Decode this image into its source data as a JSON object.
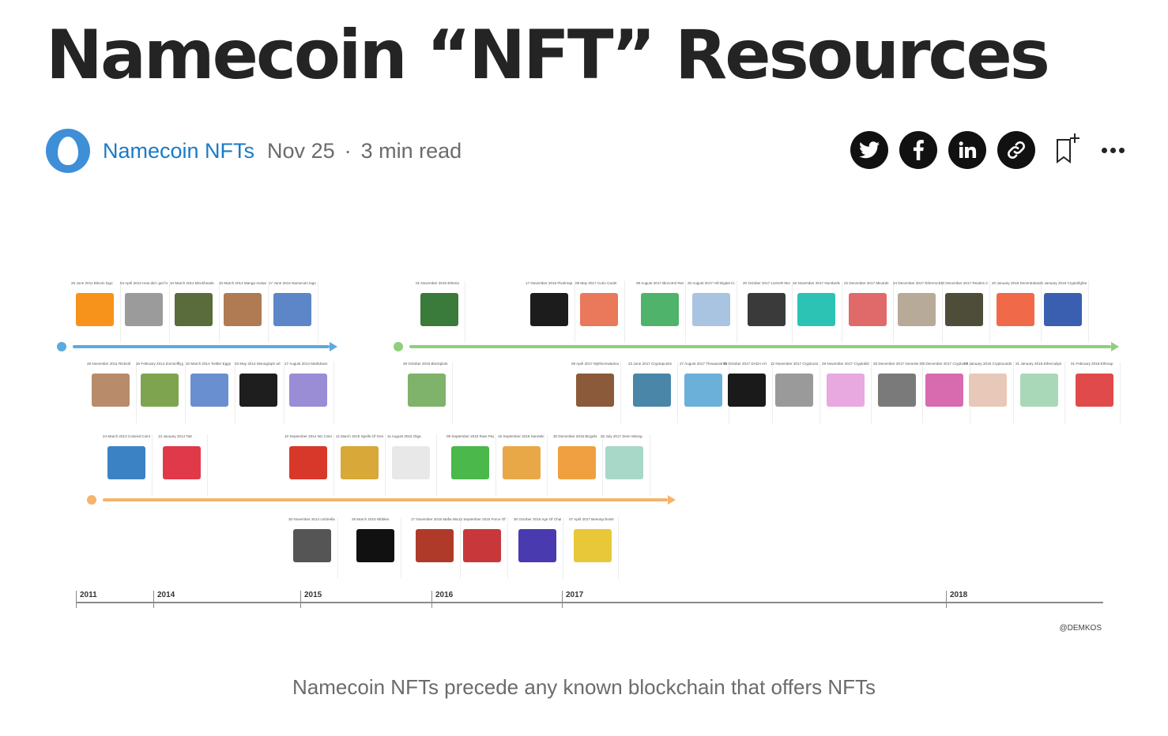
{
  "article": {
    "title": "Namecoin “NFT” Resources",
    "author": "Namecoin NFTs",
    "date": "Nov 25",
    "read_time": "3 min read",
    "caption": "Namecoin NFTs precede any known blockchain that offers NFTs"
  },
  "share": {
    "icons": [
      "twitter-icon",
      "facebook-icon",
      "linkedin-icon",
      "link-icon",
      "bookmark-add-icon",
      "more-icon"
    ],
    "button_color": "#111111"
  },
  "colors": {
    "accent": "#1a7bc6",
    "namecoin_line": "#5da9df",
    "ethereum_line": "#8fcf7c",
    "bitcoin_line": "#f4b46b"
  },
  "timeline": {
    "years": [
      "2011",
      "2014",
      "2015",
      "2016",
      "2017",
      "2018"
    ],
    "credit": "@DEMKOS",
    "events": [
      {
        "date": "25 June 2011",
        "label": "Bitcoin logo",
        "color": "#f7931a"
      },
      {
        "date": "04 April 2012",
        "label": "How did I get here cat",
        "color": "#9b9b9b"
      },
      {
        "date": "10 March 2014",
        "label": "Blockheads",
        "color": "#5a6b3c"
      },
      {
        "date": "10 March 2014",
        "label": "Manga Avatars",
        "color": "#b07a52"
      },
      {
        "date": "17 June 2014",
        "label": "Namecoin logo",
        "color": "#5c86c8"
      },
      {
        "date": "28 November 2011",
        "label": "Rickroll",
        "color": "#b88c6a"
      },
      {
        "date": "16 February 2014",
        "label": "Zomsoffly.jpg",
        "color": "#7fa44f"
      },
      {
        "date": "10 March 2014",
        "label": "Twitter Eggs",
        "color": "#6a8fd0"
      },
      {
        "date": "03 May 2014",
        "label": "Monograph art",
        "color": "#1e1e1e"
      },
      {
        "date": "17 August 2014",
        "label": "Markdown",
        "color": "#9b8cd6"
      },
      {
        "date": "01 November 2016",
        "label": "Etheria",
        "color": "#3a7a3a"
      },
      {
        "date": "17 November 2016",
        "label": "Pixelmap",
        "color": "#1c1c1c"
      },
      {
        "date": "06 May 2017",
        "label": "Curio Cards",
        "color": "#e9795a"
      },
      {
        "date": "09 August 2017",
        "label": "Blocntrol Rescue",
        "color": "#4fb36b"
      },
      {
        "date": "20 August 2017",
        "label": "Hill Digital Coins",
        "color": "#a8c4e0"
      },
      {
        "date": "20 October 2017",
        "label": "LUNAR Moon Plots",
        "color": "#3a3a3a"
      },
      {
        "date": "16 November 2017",
        "label": "Numberboard",
        "color": "#2cc3b5"
      },
      {
        "date": "22 December 2017",
        "label": "Micards",
        "color": "#e06a6a"
      },
      {
        "date": "24 December 2017",
        "label": "Etherrocks",
        "color": "#b8aa98"
      },
      {
        "date": "30 December 2017",
        "label": "Realms Of Ether",
        "color": "#4d4d3a"
      },
      {
        "date": "20 January 2018",
        "label": "Decentraland",
        "color": "#f06a4a"
      },
      {
        "date": "22 January 2018",
        "label": "Cryptofighters",
        "color": "#3b5fb0"
      },
      {
        "date": "29 October 2015",
        "label": "Blockplots",
        "color": "#7fb26a"
      },
      {
        "date": "08 April 2017",
        "label": "Mythicrewtamoerer",
        "color": "#8a5a3a"
      },
      {
        "date": "23 June 2017",
        "label": "Cryptopunks",
        "color": "#4a86a8"
      },
      {
        "date": "27 August 2017",
        "label": "Theautowl Ether Homepage",
        "color": "#6ab0d8"
      },
      {
        "date": "09 October 2017",
        "label": "DADA Art",
        "color": "#1a1a1a"
      },
      {
        "date": "12 November 2017",
        "label": "Cryptocats",
        "color": "#9a9a9a"
      },
      {
        "date": "29 November 2017",
        "label": "Cryptokitties",
        "color": "#e8a8e0"
      },
      {
        "date": "25 December 2017",
        "label": "Genesis Rocks",
        "color": "#7a7a7a"
      },
      {
        "date": "29 December 2017",
        "label": "Cryptomons",
        "color": "#d86ab0"
      },
      {
        "date": "07 January 2018",
        "label": "Cryptocards",
        "color": "#e8c8b8"
      },
      {
        "date": "21 January 2018",
        "label": "Etherculips",
        "color": "#a8d8b8"
      },
      {
        "date": "01 February 2018",
        "label": "Ethmap",
        "color": "#e04a4a"
      },
      {
        "date": "24 March 2013",
        "label": "Colored Coins",
        "color": "#3b82c4"
      },
      {
        "date": "13 January 2014",
        "label": "Tatt",
        "color": "#e0394a"
      },
      {
        "date": "10 September 2014",
        "label": "NU Coins",
        "color": "#d8382a"
      },
      {
        "date": "11 March 2015",
        "label": "Spells Of Genesis",
        "color": "#d8a838"
      },
      {
        "date": "11 August 2015",
        "label": "Olga",
        "color": "#e8e8e8"
      },
      {
        "date": "09 September 2016",
        "label": "Rare Pepes",
        "color": "#4ab84a"
      },
      {
        "date": "16 September 2016",
        "label": "Saruteki",
        "color": "#e8a848"
      },
      {
        "date": "30 December 2016",
        "label": "Btcgirls",
        "color": "#f0a040"
      },
      {
        "date": "02 July 2017",
        "label": "Zeen Mining",
        "color": "#a8d8c8"
      },
      {
        "date": "30 November 2014",
        "label": "Umbrella",
        "color": "#555555"
      },
      {
        "date": "29 March 2015",
        "label": "Nibbles",
        "color": "#111111"
      },
      {
        "date": "17 November 2015",
        "label": "Mafia Wars",
        "color": "#b03a2a"
      },
      {
        "date": "12 September 2015",
        "label": "Force Of Will",
        "color": "#c8383a"
      },
      {
        "date": "30 October 2016",
        "label": "Age Of Chains",
        "color": "#4a3ab0"
      },
      {
        "date": "07 April 2017",
        "label": "Beeosychosts",
        "color": "#e8c838"
      }
    ]
  }
}
